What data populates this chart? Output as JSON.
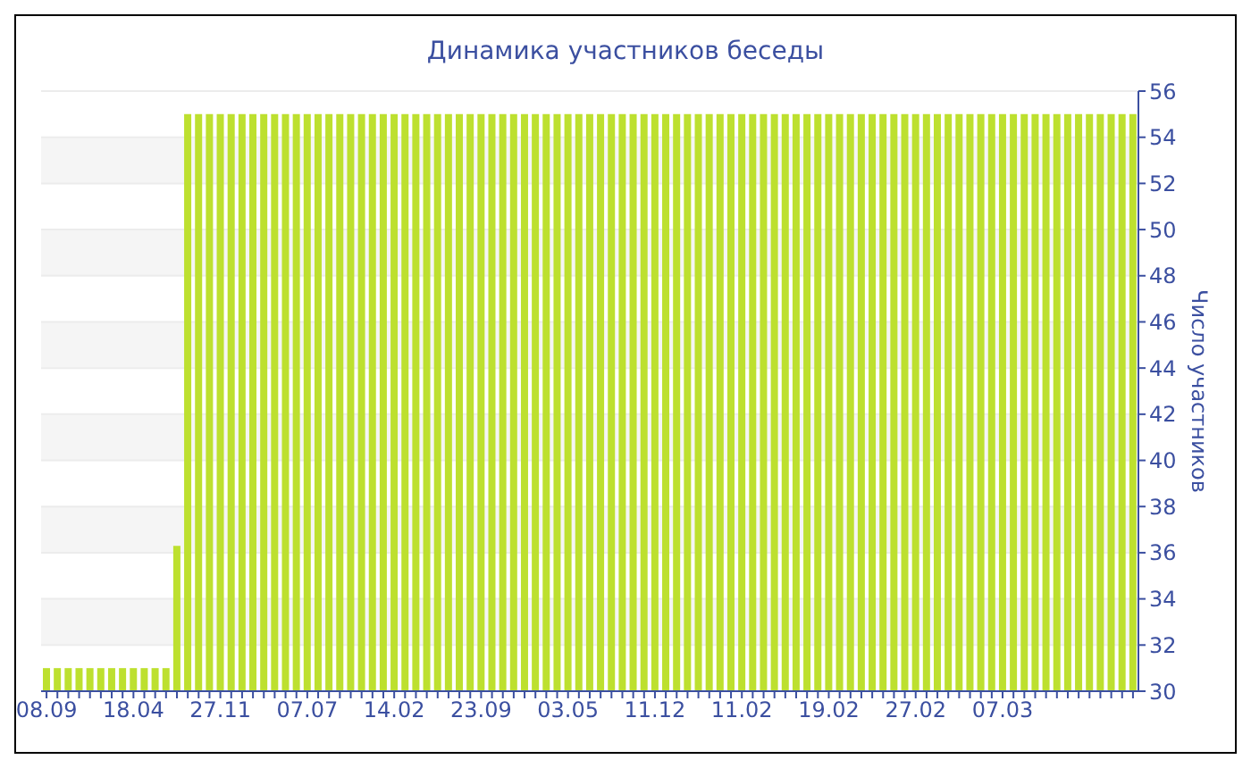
{
  "chart_data": {
    "type": "bar",
    "title": "Динамика участников беседы",
    "y2label": "Число участников",
    "categories": [
      "08.09",
      null,
      null,
      null,
      null,
      null,
      null,
      null,
      "18.04",
      null,
      null,
      null,
      null,
      null,
      null,
      null,
      "27.11",
      null,
      null,
      null,
      null,
      null,
      null,
      null,
      "07.07",
      null,
      null,
      null,
      null,
      null,
      null,
      null,
      "14.02",
      null,
      null,
      null,
      null,
      null,
      null,
      null,
      "23.09",
      null,
      null,
      null,
      null,
      null,
      null,
      null,
      "03.05",
      null,
      null,
      null,
      null,
      null,
      null,
      null,
      "11.12",
      null,
      null,
      null,
      null,
      null,
      null,
      null,
      "11.02",
      null,
      null,
      null,
      null,
      null,
      null,
      null,
      "19.02",
      null,
      null,
      null,
      null,
      null,
      null,
      null,
      "27.02",
      null,
      null,
      null,
      null,
      null,
      null,
      null,
      "07.03",
      null,
      null,
      null,
      null,
      null,
      null,
      null,
      null,
      null,
      null,
      null,
      null
    ],
    "series": [
      {
        "color": "#bde02f",
        "axis": "y2",
        "values": [
          31,
          31,
          31,
          31,
          31,
          31,
          31,
          31,
          31,
          31,
          31,
          31,
          36.3,
          55,
          55,
          55,
          55,
          55,
          55,
          55,
          55,
          55,
          55,
          55,
          55,
          55,
          55,
          55,
          55,
          55,
          55,
          55,
          55,
          55,
          55,
          55,
          55,
          55,
          55,
          55,
          55,
          55,
          55,
          55,
          55,
          55,
          55,
          55,
          55,
          55,
          55,
          55,
          55,
          55,
          55,
          55,
          55,
          55,
          55,
          55,
          55,
          55,
          55,
          55,
          55,
          55,
          55,
          55,
          55,
          55,
          55,
          55,
          55,
          55,
          55,
          55,
          55,
          55,
          55,
          55,
          55,
          55,
          55,
          55,
          55,
          55,
          55,
          55,
          55,
          55,
          55,
          55,
          55,
          55,
          55,
          55,
          55,
          55,
          55,
          55,
          55
        ]
      }
    ],
    "y2lim": [
      30,
      56
    ],
    "y2ticks": [
      30,
      32,
      34,
      36,
      38,
      40,
      42,
      44,
      46,
      48,
      50,
      52,
      54,
      56
    ],
    "grid": "y",
    "legend": false
  }
}
